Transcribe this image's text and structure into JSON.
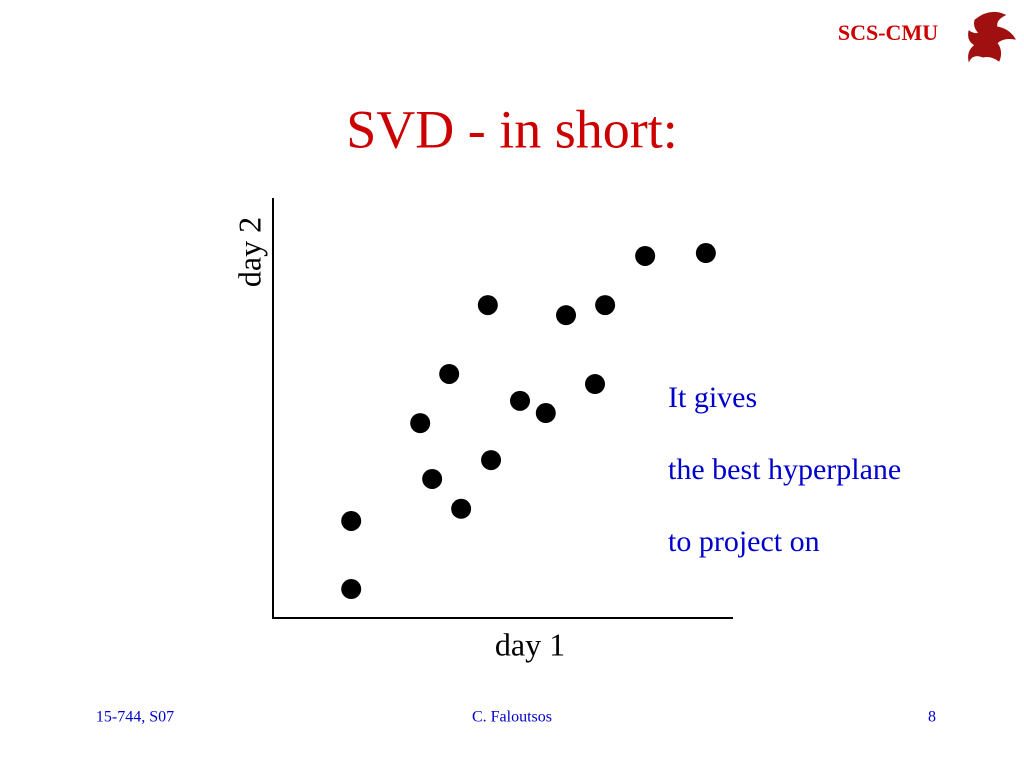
{
  "header": {
    "brand": "SCS-CMU"
  },
  "chart_data": {
    "type": "scatter",
    "title": "SVD - in short:",
    "x_label": "day 1",
    "y_label": "day 2",
    "x": [
      17.0,
      17.0,
      32.0,
      34.6,
      38.3,
      40.9,
      46.7,
      47.4,
      53.7,
      59.3,
      63.7,
      70.0,
      72.2,
      80.9,
      94.1
    ],
    "values": [
      6.9,
      23.1,
      46.4,
      33.1,
      58.1,
      26.0,
      74.5,
      37.6,
      51.7,
      48.8,
      72.1,
      55.7,
      74.5,
      86.2,
      86.9
    ],
    "color": "#000000",
    "xlim": [
      0,
      100
    ],
    "ylim": [
      0,
      100
    ],
    "annotation": [
      "It gives",
      "the best hyperplane",
      "to project on"
    ]
  },
  "footer": {
    "course": "15-744, S07",
    "author": "C. Faloutsos",
    "page": "8"
  }
}
